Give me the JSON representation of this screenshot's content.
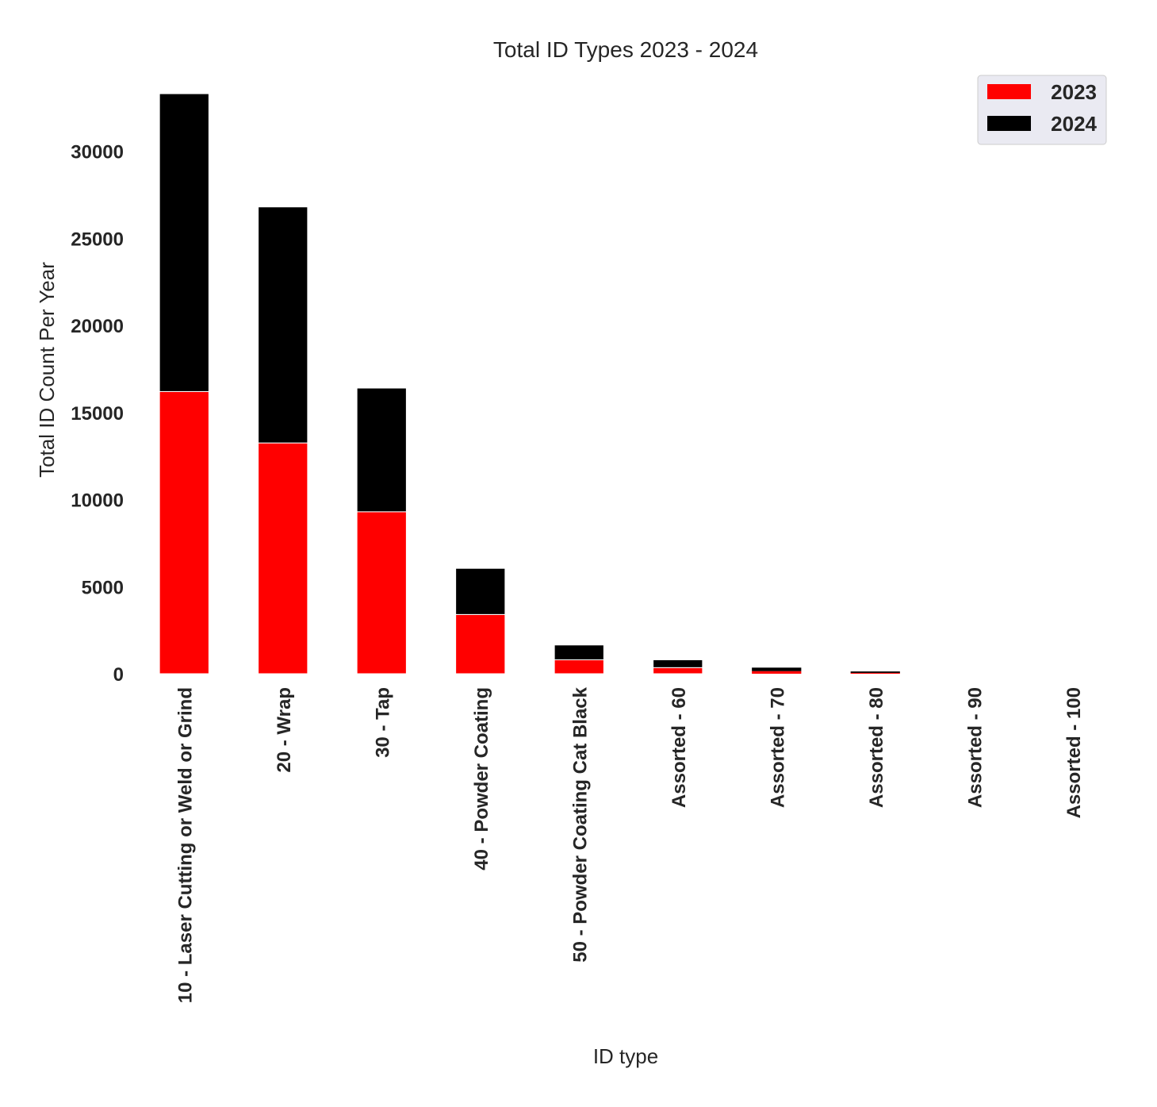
{
  "chart_data": {
    "type": "bar",
    "stacked": true,
    "title": "Total ID Types 2023 - 2024",
    "xlabel": "ID type",
    "ylabel": "Total ID Count Per Year",
    "categories": [
      "10 - Laser Cutting or Weld or Grind",
      "20 - Wrap",
      "30 - Tap",
      "40 - Powder Coating",
      "50 - Powder Coating Cat Black",
      "Assorted - 60",
      "Assorted - 70",
      "Assorted - 80",
      "Assorted - 90",
      "Assorted - 100"
    ],
    "series": [
      {
        "name": "2023",
        "color": "#ff0000",
        "values": [
          16200,
          13250,
          9300,
          3400,
          800,
          350,
          150,
          50,
          0,
          0
        ]
      },
      {
        "name": "2024",
        "color": "#000000",
        "values": [
          17100,
          13550,
          7100,
          2650,
          850,
          450,
          200,
          80,
          0,
          0
        ]
      }
    ],
    "yticks": [
      0,
      5000,
      10000,
      15000,
      20000,
      25000,
      30000
    ],
    "ylim": [
      0,
      33300
    ],
    "grid": false,
    "legend": {
      "position": "top-right",
      "background": "#eaeaf2"
    }
  }
}
